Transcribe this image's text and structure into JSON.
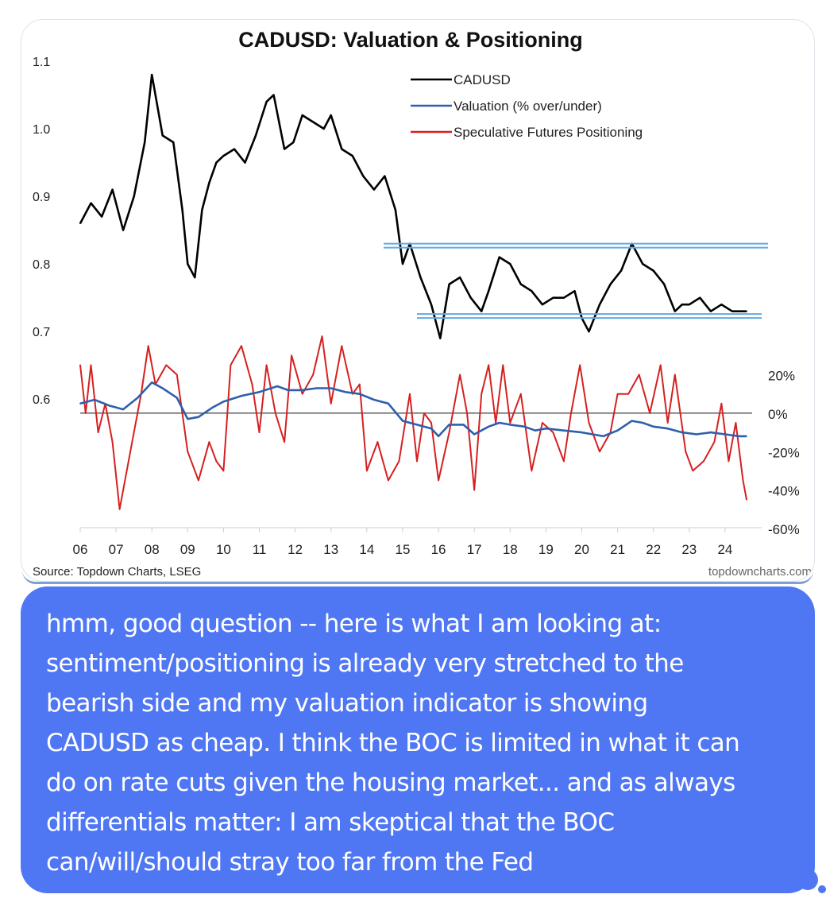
{
  "chart_data": {
    "type": "line",
    "title": "CADUSD: Valuation & Positioning",
    "source": "Source: Topdown Charts, LSEG",
    "watermark": "topdowncharts.com",
    "x_tick_labels": [
      "06",
      "07",
      "08",
      "09",
      "10",
      "11",
      "12",
      "13",
      "14",
      "15",
      "16",
      "17",
      "18",
      "19",
      "20",
      "21",
      "22",
      "23",
      "24"
    ],
    "x_range": [
      2006,
      2024.8
    ],
    "left_axis": {
      "ticks": [
        0.6,
        0.7,
        0.8,
        0.9,
        1.0,
        1.1
      ],
      "tick_labels": [
        "0.6",
        "0.7",
        "0.8",
        "0.9",
        "1.0",
        "1.1"
      ],
      "range": [
        0.545,
        1.1
      ]
    },
    "right_axis": {
      "ticks": [
        20,
        0,
        -20,
        -40,
        -60
      ],
      "tick_labels": [
        "20%",
        "0%",
        "-20%",
        "-40%",
        "-60%"
      ],
      "range": [
        -60,
        38
      ]
    },
    "zero_line": 0,
    "legend": {
      "placement": "top-right",
      "entries": [
        "CADUSD",
        "Valuation (% over/under)",
        "Speculative Futures Positioning"
      ]
    },
    "colors": {
      "cadusd": "#000000",
      "valuation": "#2e5fad",
      "positioning": "#d62020",
      "bands": "#63a8e3"
    },
    "series": [
      {
        "name": "CADUSD",
        "axis": "left",
        "x": [
          2006.0,
          2006.3,
          2006.6,
          2006.9,
          2007.2,
          2007.5,
          2007.8,
          2008.0,
          2008.3,
          2008.6,
          2008.85,
          2009.0,
          2009.2,
          2009.4,
          2009.6,
          2009.8,
          2010.0,
          2010.3,
          2010.6,
          2010.9,
          2011.2,
          2011.4,
          2011.7,
          2011.95,
          2012.2,
          2012.5,
          2012.8,
          2013.0,
          2013.3,
          2013.6,
          2013.9,
          2014.2,
          2014.5,
          2014.8,
          2015.0,
          2015.2,
          2015.5,
          2015.8,
          2016.05,
          2016.3,
          2016.6,
          2016.9,
          2017.2,
          2017.4,
          2017.7,
          2018.0,
          2018.3,
          2018.6,
          2018.9,
          2019.2,
          2019.5,
          2019.8,
          2020.0,
          2020.2,
          2020.5,
          2020.8,
          2021.1,
          2021.4,
          2021.7,
          2022.0,
          2022.3,
          2022.6,
          2022.8,
          2023.0,
          2023.3,
          2023.6,
          2023.9,
          2024.2,
          2024.5,
          2024.6
        ],
        "values": [
          0.86,
          0.89,
          0.87,
          0.91,
          0.85,
          0.9,
          0.98,
          1.08,
          0.99,
          0.98,
          0.88,
          0.8,
          0.78,
          0.88,
          0.92,
          0.95,
          0.96,
          0.97,
          0.95,
          0.99,
          1.04,
          1.05,
          0.97,
          0.98,
          1.02,
          1.01,
          1.0,
          1.02,
          0.97,
          0.96,
          0.93,
          0.91,
          0.93,
          0.88,
          0.8,
          0.83,
          0.78,
          0.74,
          0.69,
          0.77,
          0.78,
          0.75,
          0.73,
          0.76,
          0.81,
          0.8,
          0.77,
          0.76,
          0.74,
          0.75,
          0.75,
          0.76,
          0.72,
          0.7,
          0.74,
          0.77,
          0.79,
          0.83,
          0.8,
          0.79,
          0.77,
          0.73,
          0.74,
          0.74,
          0.75,
          0.73,
          0.74,
          0.73,
          0.73,
          0.73
        ]
      },
      {
        "name": "Valuation (% over/under)",
        "axis": "right",
        "x": [
          2006.0,
          2006.4,
          2006.8,
          2007.2,
          2007.6,
          2008.0,
          2008.3,
          2008.7,
          2009.0,
          2009.3,
          2009.7,
          2010.0,
          2010.5,
          2011.0,
          2011.5,
          2011.8,
          2012.2,
          2012.6,
          2013.0,
          2013.4,
          2013.8,
          2014.2,
          2014.6,
          2015.0,
          2015.4,
          2015.8,
          2016.0,
          2016.3,
          2016.7,
          2017.0,
          2017.4,
          2017.7,
          2018.0,
          2018.4,
          2018.7,
          2019.0,
          2019.5,
          2020.0,
          2020.3,
          2020.6,
          2021.0,
          2021.4,
          2021.7,
          2022.0,
          2022.4,
          2022.8,
          2023.2,
          2023.6,
          2024.0,
          2024.4,
          2024.6
        ],
        "values": [
          5,
          7,
          4,
          2,
          8,
          16,
          13,
          8,
          -3,
          -2,
          3,
          6,
          9,
          11,
          14,
          12,
          12,
          13,
          13,
          11,
          10,
          7,
          5,
          -4,
          -6,
          -8,
          -12,
          -6,
          -6,
          -11,
          -7,
          -5,
          -6,
          -7,
          -9,
          -8,
          -9,
          -10,
          -11,
          -12,
          -9,
          -4,
          -5,
          -7,
          -8,
          -10,
          -11,
          -10,
          -11,
          -12,
          -12
        ]
      },
      {
        "name": "Speculative Futures Positioning",
        "axis": "right",
        "x": [
          2006.0,
          2006.15,
          2006.3,
          2006.5,
          2006.7,
          2006.9,
          2007.1,
          2007.4,
          2007.7,
          2007.9,
          2008.1,
          2008.4,
          2008.7,
          2009.0,
          2009.3,
          2009.6,
          2009.8,
          2010.0,
          2010.2,
          2010.5,
          2010.8,
          2011.0,
          2011.2,
          2011.45,
          2011.7,
          2011.9,
          2012.2,
          2012.5,
          2012.75,
          2013.0,
          2013.3,
          2013.6,
          2013.8,
          2014.0,
          2014.3,
          2014.6,
          2014.9,
          2015.2,
          2015.4,
          2015.6,
          2015.8,
          2016.0,
          2016.3,
          2016.6,
          2016.8,
          2017.0,
          2017.2,
          2017.4,
          2017.6,
          2017.8,
          2018.0,
          2018.3,
          2018.6,
          2018.9,
          2019.2,
          2019.5,
          2019.7,
          2019.95,
          2020.2,
          2020.5,
          2020.8,
          2021.0,
          2021.3,
          2021.6,
          2021.9,
          2022.2,
          2022.4,
          2022.6,
          2022.9,
          2023.1,
          2023.4,
          2023.7,
          2023.9,
          2024.1,
          2024.3,
          2024.5,
          2024.6
        ],
        "values": [
          25,
          0,
          25,
          -10,
          5,
          -15,
          -50,
          -20,
          10,
          35,
          15,
          25,
          20,
          -20,
          -35,
          -15,
          -25,
          -30,
          25,
          35,
          15,
          -10,
          25,
          0,
          -15,
          30,
          10,
          20,
          40,
          5,
          35,
          10,
          15,
          -30,
          -15,
          -35,
          -25,
          10,
          -25,
          0,
          -5,
          -35,
          -10,
          20,
          0,
          -40,
          10,
          25,
          -5,
          25,
          -5,
          10,
          -30,
          -5,
          -10,
          -25,
          0,
          25,
          -5,
          -20,
          -10,
          10,
          10,
          20,
          0,
          25,
          -5,
          20,
          -20,
          -30,
          -25,
          -15,
          5,
          -25,
          -5,
          -35,
          -45
        ]
      }
    ],
    "bands": [
      {
        "label": "upper",
        "value": 0.827
      },
      {
        "label": "lower",
        "value": 0.723
      }
    ]
  },
  "message": {
    "lines": [
      "hmm, good question -- here is what I am looking at:",
      "sentiment/positioning is already very stretched to the",
      "bearish side and my valuation indicator is showing",
      "CADUSD as cheap. I think the BOC is limited in what it can",
      "do on rate cuts given the housing market... and as always",
      "differentials matter: I am skeptical that the BOC",
      "can/will/should stray too far from the Fed"
    ]
  }
}
